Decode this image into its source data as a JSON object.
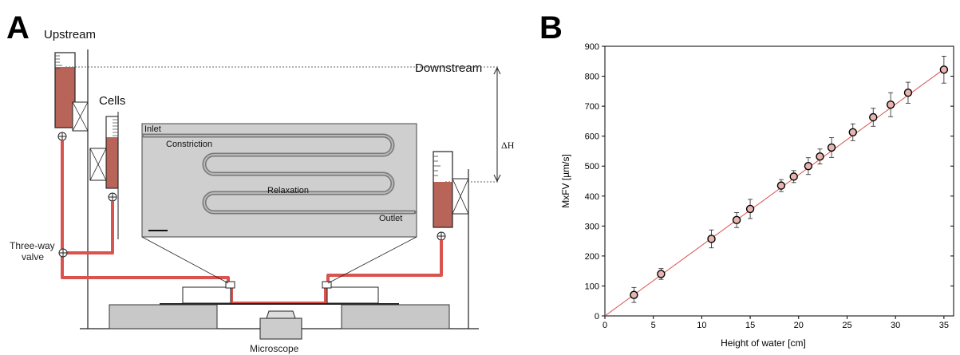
{
  "panel_a": {
    "letter": "A",
    "upstream": "Upstream",
    "downstream": "Downstream",
    "cells": "Cells",
    "three_way_valve_line1": "Three-way",
    "three_way_valve_line2": "valve",
    "microscope": "Microscope",
    "delta_h": "ΔH",
    "chip": {
      "inlet": "Inlet",
      "constriction": "Constriction",
      "relaxation": "Relaxation",
      "outlet": "Outlet"
    },
    "colors": {
      "fluid": "#d9534f",
      "reservoir_fill": "#b86459",
      "chip_bg": "#cfcfcf"
    }
  },
  "panel_b": {
    "letter": "B"
  },
  "chart_data": {
    "type": "scatter",
    "xlabel": "Height of water [cm]",
    "ylabel": "MxFV [µm/s]",
    "xlim": [
      0,
      36
    ],
    "ylim": [
      0,
      900
    ],
    "xticks": [
      0,
      5,
      10,
      15,
      20,
      25,
      30,
      35
    ],
    "yticks": [
      0,
      100,
      200,
      300,
      400,
      500,
      600,
      700,
      800,
      900
    ],
    "grid": false,
    "points": [
      {
        "x": 3.0,
        "y": 70,
        "err": 25
      },
      {
        "x": 5.8,
        "y": 140,
        "err": 18
      },
      {
        "x": 11.0,
        "y": 257,
        "err": 30
      },
      {
        "x": 13.6,
        "y": 320,
        "err": 25
      },
      {
        "x": 15.0,
        "y": 357,
        "err": 32
      },
      {
        "x": 18.2,
        "y": 435,
        "err": 20
      },
      {
        "x": 19.5,
        "y": 465,
        "err": 20
      },
      {
        "x": 21.0,
        "y": 500,
        "err": 28
      },
      {
        "x": 22.2,
        "y": 532,
        "err": 25
      },
      {
        "x": 23.4,
        "y": 562,
        "err": 33
      },
      {
        "x": 25.6,
        "y": 613,
        "err": 28
      },
      {
        "x": 27.7,
        "y": 663,
        "err": 30
      },
      {
        "x": 29.5,
        "y": 705,
        "err": 40
      },
      {
        "x": 31.3,
        "y": 745,
        "err": 35
      },
      {
        "x": 35.0,
        "y": 822,
        "err": 45
      }
    ],
    "fit_line": {
      "x": [
        0,
        35
      ],
      "y": [
        0,
        824
      ],
      "color": "#d9534f"
    }
  }
}
